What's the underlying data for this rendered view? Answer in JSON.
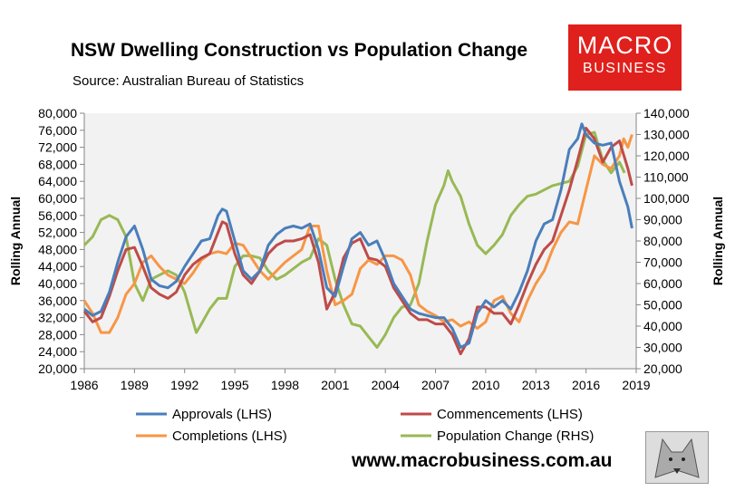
{
  "header": {
    "title": "NSW Dwelling Construction vs Population Change",
    "source": "Source: Australian Bureau of Statistics"
  },
  "logo": {
    "line1": "MACRO",
    "line2": "BUSINESS"
  },
  "footer": {
    "website": "www.macrobusiness.com.au"
  },
  "colors": {
    "approvals": "#4a7ebb",
    "commencements": "#be4b48",
    "completions": "#f79646",
    "population": "#98b954",
    "plot_bg": "#f2f2f2",
    "logo": "#e0201c"
  },
  "chart_data": {
    "type": "line",
    "title": "NSW Dwelling Construction vs Population Change",
    "ylabel": "Rolling Annual",
    "y2label": "Rolling Annual",
    "xlim": [
      1986,
      2019
    ],
    "ylim": [
      20000,
      80000
    ],
    "y2lim": [
      20000,
      140000
    ],
    "x_ticks": [
      "1986",
      "1989",
      "1992",
      "1995",
      "1998",
      "2001",
      "2004",
      "2007",
      "2010",
      "2013",
      "2016",
      "2019"
    ],
    "y_ticks": [
      "20,000",
      "24,000",
      "28,000",
      "32,000",
      "36,000",
      "40,000",
      "44,000",
      "48,000",
      "52,000",
      "56,000",
      "60,000",
      "64,000",
      "68,000",
      "72,000",
      "76,000",
      "80,000"
    ],
    "y2_ticks": [
      "20,000",
      "30,000",
      "40,000",
      "50,000",
      "60,000",
      "70,000",
      "80,000",
      "90,000",
      "100,000",
      "110,000",
      "120,000",
      "130,000",
      "140,000"
    ],
    "legend_position": "bottom",
    "series": [
      {
        "name": "Approvals (LHS)",
        "axis": "left",
        "color_key": "approvals",
        "points": [
          [
            1986,
            34000
          ],
          [
            1986.5,
            32500
          ],
          [
            1987,
            33500
          ],
          [
            1987.5,
            38000
          ],
          [
            1988,
            45000
          ],
          [
            1988.5,
            51000
          ],
          [
            1989,
            53500
          ],
          [
            1989.5,
            48000
          ],
          [
            1990,
            41000
          ],
          [
            1990.5,
            39500
          ],
          [
            1991,
            39000
          ],
          [
            1991.5,
            40500
          ],
          [
            1992,
            44000
          ],
          [
            1992.5,
            47000
          ],
          [
            1993,
            50000
          ],
          [
            1993.5,
            50500
          ],
          [
            1994,
            56000
          ],
          [
            1994.25,
            57500
          ],
          [
            1994.5,
            57000
          ],
          [
            1995,
            50000
          ],
          [
            1995.5,
            43000
          ],
          [
            1996,
            41000
          ],
          [
            1996.5,
            43000
          ],
          [
            1997,
            49000
          ],
          [
            1997.5,
            51500
          ],
          [
            1998,
            53000
          ],
          [
            1998.5,
            53500
          ],
          [
            1999,
            53000
          ],
          [
            1999.5,
            54000
          ],
          [
            2000,
            48000
          ],
          [
            2000.5,
            39000
          ],
          [
            2001,
            37000
          ],
          [
            2001.5,
            44000
          ],
          [
            2002,
            50500
          ],
          [
            2002.5,
            52000
          ],
          [
            2003,
            49000
          ],
          [
            2003.5,
            50000
          ],
          [
            2004,
            45500
          ],
          [
            2004.5,
            40000
          ],
          [
            2005,
            37000
          ],
          [
            2005.5,
            34000
          ],
          [
            2006,
            33000
          ],
          [
            2006.5,
            32500
          ],
          [
            2007,
            32000
          ],
          [
            2007.5,
            32000
          ],
          [
            2008,
            29500
          ],
          [
            2008.5,
            25000
          ],
          [
            2009,
            26000
          ],
          [
            2009.5,
            33000
          ],
          [
            2010,
            36000
          ],
          [
            2010.5,
            34500
          ],
          [
            2011,
            36000
          ],
          [
            2011.5,
            34000
          ],
          [
            2012,
            38000
          ],
          [
            2012.5,
            43000
          ],
          [
            2013,
            50000
          ],
          [
            2013.5,
            54000
          ],
          [
            2014,
            55000
          ],
          [
            2014.5,
            62000
          ],
          [
            2015,
            71500
          ],
          [
            2015.5,
            74000
          ],
          [
            2015.75,
            77500
          ],
          [
            2016,
            75000
          ],
          [
            2016.5,
            73000
          ],
          [
            2017,
            72500
          ],
          [
            2017.5,
            73000
          ],
          [
            2018,
            64000
          ],
          [
            2018.5,
            58000
          ],
          [
            2018.75,
            53000
          ]
        ]
      },
      {
        "name": "Commencements (LHS)",
        "axis": "left",
        "color_key": "commencements",
        "points": [
          [
            1986,
            33500
          ],
          [
            1986.5,
            31000
          ],
          [
            1987,
            32000
          ],
          [
            1987.5,
            37000
          ],
          [
            1988,
            43000
          ],
          [
            1988.5,
            48000
          ],
          [
            1989,
            48500
          ],
          [
            1989.5,
            44000
          ],
          [
            1990,
            39000
          ],
          [
            1990.5,
            37500
          ],
          [
            1991,
            36500
          ],
          [
            1991.5,
            38000
          ],
          [
            1992,
            42000
          ],
          [
            1992.5,
            44500
          ],
          [
            1993,
            46000
          ],
          [
            1993.5,
            47000
          ],
          [
            1994,
            52000
          ],
          [
            1994.25,
            54500
          ],
          [
            1994.5,
            54000
          ],
          [
            1995,
            47000
          ],
          [
            1995.5,
            42000
          ],
          [
            1996,
            40000
          ],
          [
            1996.5,
            43000
          ],
          [
            1997,
            47000
          ],
          [
            1997.5,
            49000
          ],
          [
            1998,
            50000
          ],
          [
            1998.5,
            50000
          ],
          [
            1999,
            50500
          ],
          [
            1999.5,
            51500
          ],
          [
            2000,
            45000
          ],
          [
            2000.5,
            34000
          ],
          [
            2001,
            38000
          ],
          [
            2001.5,
            46000
          ],
          [
            2002,
            49500
          ],
          [
            2002.5,
            50500
          ],
          [
            2003,
            46000
          ],
          [
            2003.5,
            45500
          ],
          [
            2004,
            44000
          ],
          [
            2004.5,
            39000
          ],
          [
            2005,
            36000
          ],
          [
            2005.5,
            33000
          ],
          [
            2006,
            31500
          ],
          [
            2006.5,
            31500
          ],
          [
            2007,
            30500
          ],
          [
            2007.5,
            30500
          ],
          [
            2008,
            28000
          ],
          [
            2008.5,
            23500
          ],
          [
            2009,
            27000
          ],
          [
            2009.5,
            34500
          ],
          [
            2010,
            34500
          ],
          [
            2010.5,
            33000
          ],
          [
            2011,
            33000
          ],
          [
            2011.5,
            30500
          ],
          [
            2012,
            35000
          ],
          [
            2012.5,
            40000
          ],
          [
            2013,
            44500
          ],
          [
            2013.5,
            48000
          ],
          [
            2014,
            50000
          ],
          [
            2014.5,
            56000
          ],
          [
            2015,
            62000
          ],
          [
            2015.5,
            69000
          ],
          [
            2016,
            76500
          ],
          [
            2016.5,
            74000
          ],
          [
            2017,
            68500
          ],
          [
            2017.5,
            72000
          ],
          [
            2018,
            73500
          ],
          [
            2018.5,
            67000
          ],
          [
            2018.75,
            63000
          ]
        ]
      },
      {
        "name": "Completions (LHS)",
        "axis": "left",
        "color_key": "completions",
        "points": [
          [
            1986,
            36000
          ],
          [
            1986.5,
            33000
          ],
          [
            1987,
            28500
          ],
          [
            1987.5,
            28500
          ],
          [
            1988,
            32000
          ],
          [
            1988.5,
            37500
          ],
          [
            1989,
            40000
          ],
          [
            1989.5,
            45000
          ],
          [
            1990,
            46500
          ],
          [
            1990.5,
            44000
          ],
          [
            1991,
            42000
          ],
          [
            1991.5,
            41000
          ],
          [
            1992,
            40000
          ],
          [
            1992.5,
            42500
          ],
          [
            1993,
            45500
          ],
          [
            1993.5,
            47000
          ],
          [
            1994,
            47500
          ],
          [
            1994.5,
            47000
          ],
          [
            1995,
            49500
          ],
          [
            1995.5,
            49000
          ],
          [
            1996,
            46000
          ],
          [
            1996.5,
            43000
          ],
          [
            1997,
            41000
          ],
          [
            1997.5,
            43000
          ],
          [
            1998,
            45000
          ],
          [
            1998.5,
            46500
          ],
          [
            1999,
            48000
          ],
          [
            1999.5,
            53500
          ],
          [
            2000,
            53500
          ],
          [
            2000.5,
            43000
          ],
          [
            2001,
            35000
          ],
          [
            2001.5,
            36000
          ],
          [
            2002,
            37500
          ],
          [
            2002.5,
            43500
          ],
          [
            2003,
            45500
          ],
          [
            2003.5,
            44500
          ],
          [
            2004,
            46500
          ],
          [
            2004.5,
            46500
          ],
          [
            2005,
            45500
          ],
          [
            2005.5,
            42000
          ],
          [
            2006,
            35000
          ],
          [
            2006.5,
            33500
          ],
          [
            2007,
            32500
          ],
          [
            2007.5,
            31000
          ],
          [
            2008,
            31500
          ],
          [
            2008.5,
            30000
          ],
          [
            2009,
            31000
          ],
          [
            2009.5,
            29500
          ],
          [
            2010,
            31000
          ],
          [
            2010.5,
            36000
          ],
          [
            2011,
            37000
          ],
          [
            2011.5,
            33000
          ],
          [
            2012,
            31000
          ],
          [
            2012.5,
            36000
          ],
          [
            2013,
            40000
          ],
          [
            2013.5,
            43000
          ],
          [
            2014,
            48000
          ],
          [
            2014.5,
            52000
          ],
          [
            2015,
            54500
          ],
          [
            2015.5,
            54000
          ],
          [
            2016,
            62000
          ],
          [
            2016.5,
            70000
          ],
          [
            2017,
            68000
          ],
          [
            2017.5,
            67000
          ],
          [
            2018,
            70000
          ],
          [
            2018.25,
            74000
          ],
          [
            2018.5,
            72000
          ],
          [
            2018.75,
            75000
          ]
        ]
      },
      {
        "name": "Population Change (RHS)",
        "axis": "right",
        "color_key": "population",
        "points": [
          [
            1986,
            78000
          ],
          [
            1986.5,
            82000
          ],
          [
            1987,
            90000
          ],
          [
            1987.5,
            92000
          ],
          [
            1988,
            90000
          ],
          [
            1988.5,
            82000
          ],
          [
            1989,
            60000
          ],
          [
            1989.5,
            52000
          ],
          [
            1990,
            62000
          ],
          [
            1990.5,
            64000
          ],
          [
            1991,
            66000
          ],
          [
            1991.5,
            64000
          ],
          [
            1992,
            56000
          ],
          [
            1992.7,
            37000
          ],
          [
            1993,
            41000
          ],
          [
            1993.5,
            48000
          ],
          [
            1994,
            53000
          ],
          [
            1994.5,
            53000
          ],
          [
            1995,
            68000
          ],
          [
            1995.5,
            73000
          ],
          [
            1996,
            73000
          ],
          [
            1996.5,
            72000
          ],
          [
            1997,
            66000
          ],
          [
            1997.5,
            62000
          ],
          [
            1998,
            64000
          ],
          [
            1998.5,
            67000
          ],
          [
            1999,
            70000
          ],
          [
            1999.5,
            72000
          ],
          [
            2000,
            81000
          ],
          [
            2000.5,
            78000
          ],
          [
            2001,
            62000
          ],
          [
            2001.5,
            50000
          ],
          [
            2002,
            41000
          ],
          [
            2002.5,
            40000
          ],
          [
            2003,
            35000
          ],
          [
            2003.5,
            30000
          ],
          [
            2004,
            36000
          ],
          [
            2004.5,
            44000
          ],
          [
            2005,
            49000
          ],
          [
            2005.5,
            50000
          ],
          [
            2006,
            60000
          ],
          [
            2006.5,
            80000
          ],
          [
            2007,
            97000
          ],
          [
            2007.5,
            106000
          ],
          [
            2007.75,
            113000
          ],
          [
            2008,
            108000
          ],
          [
            2008.5,
            101000
          ],
          [
            2009,
            88000
          ],
          [
            2009.5,
            78000
          ],
          [
            2010,
            74000
          ],
          [
            2010.5,
            78000
          ],
          [
            2011,
            83000
          ],
          [
            2011.5,
            92000
          ],
          [
            2012,
            97000
          ],
          [
            2012.5,
            101000
          ],
          [
            2013,
            102000
          ],
          [
            2013.5,
            104000
          ],
          [
            2014,
            106000
          ],
          [
            2014.5,
            107000
          ],
          [
            2015,
            108000
          ],
          [
            2015.5,
            115000
          ],
          [
            2016,
            130000
          ],
          [
            2016.5,
            131000
          ],
          [
            2017,
            118000
          ],
          [
            2017.5,
            112000
          ],
          [
            2018,
            117000
          ],
          [
            2018.3,
            112000
          ]
        ]
      }
    ]
  }
}
